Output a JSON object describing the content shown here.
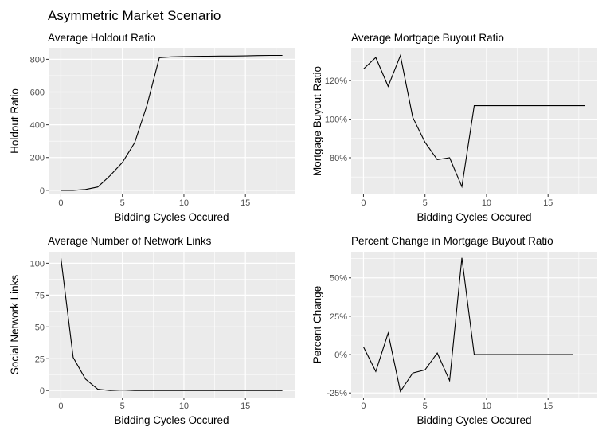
{
  "title": "Asymmetric Market Scenario",
  "chart_data": [
    {
      "type": "line",
      "title": "Average Holdout Ratio",
      "xlabel": "Bidding Cycles Occured",
      "ylabel": "Holdout Ratio",
      "x": [
        0,
        1,
        2,
        3,
        4,
        5,
        6,
        7,
        8,
        9,
        10,
        11,
        12,
        13,
        14,
        15,
        16,
        17,
        18
      ],
      "values": [
        0,
        0,
        5,
        20,
        90,
        170,
        290,
        520,
        810,
        815,
        817,
        818,
        819,
        820,
        820,
        821,
        823,
        824,
        824
      ],
      "xlim": [
        -1,
        19
      ],
      "ylim": [
        -25,
        870
      ],
      "xticks": [
        0,
        5,
        10,
        15
      ],
      "yticks": [
        0,
        200,
        400,
        600,
        800
      ],
      "ytick_labels": [
        "0",
        "200",
        "400",
        "600",
        "800"
      ],
      "grid": true
    },
    {
      "type": "line",
      "title": "Average Mortgage Buyout Ratio",
      "xlabel": "Bidding Cycles Occured",
      "ylabel": "Mortgage Buyout Ratio",
      "x": [
        0,
        1,
        2,
        3,
        4,
        5,
        6,
        7,
        8,
        9,
        10,
        11,
        12,
        13,
        14,
        15,
        16,
        17,
        18
      ],
      "values": [
        126,
        132,
        117,
        133,
        101,
        88,
        79,
        80,
        65,
        107,
        107,
        107,
        107,
        107,
        107,
        107,
        107,
        107,
        107
      ],
      "xlim": [
        -1,
        19
      ],
      "ylim": [
        61,
        137
      ],
      "xticks": [
        0,
        5,
        10,
        15
      ],
      "yticks": [
        80,
        100,
        120
      ],
      "ytick_labels": [
        "80%",
        "100%",
        "120%"
      ],
      "grid": true
    },
    {
      "type": "line",
      "title": "Average Number of Network Links",
      "xlabel": "Bidding Cycles Occured",
      "ylabel": "Social Network Links",
      "x": [
        0,
        1,
        2,
        3,
        4,
        5,
        6,
        7,
        8,
        9,
        10,
        11,
        12,
        13,
        14,
        15,
        16,
        17,
        18
      ],
      "values": [
        104,
        26,
        9,
        1,
        0,
        0.4,
        0,
        0,
        0,
        0,
        0,
        0,
        0,
        0,
        0,
        0,
        0,
        0,
        0
      ],
      "xlim": [
        -1,
        19
      ],
      "ylim": [
        -5.5,
        109
      ],
      "xticks": [
        0,
        5,
        10,
        15
      ],
      "yticks": [
        0,
        25,
        50,
        75,
        100
      ],
      "ytick_labels": [
        "0",
        "25",
        "50",
        "75",
        "100"
      ],
      "grid": true
    },
    {
      "type": "line",
      "title": "Percent Change in Mortgage Buyout Ratio",
      "xlabel": "Bidding Cycles Occured",
      "ylabel": "Percent Change",
      "x": [
        0,
        1,
        2,
        3,
        4,
        5,
        6,
        7,
        8,
        9,
        10,
        11,
        12,
        13,
        14,
        15,
        16,
        17
      ],
      "values": [
        5,
        -11,
        14,
        -24,
        -12,
        -10,
        1,
        -17,
        63,
        0,
        0,
        0,
        0,
        0,
        0,
        0,
        0,
        0
      ],
      "xlim": [
        -1,
        19
      ],
      "ylim": [
        -28,
        67
      ],
      "xticks": [
        0,
        5,
        10,
        15
      ],
      "yticks": [
        -25,
        0,
        25,
        50
      ],
      "ytick_labels": [
        "-25%",
        "0%",
        "25%",
        "50%"
      ],
      "grid": true
    }
  ]
}
